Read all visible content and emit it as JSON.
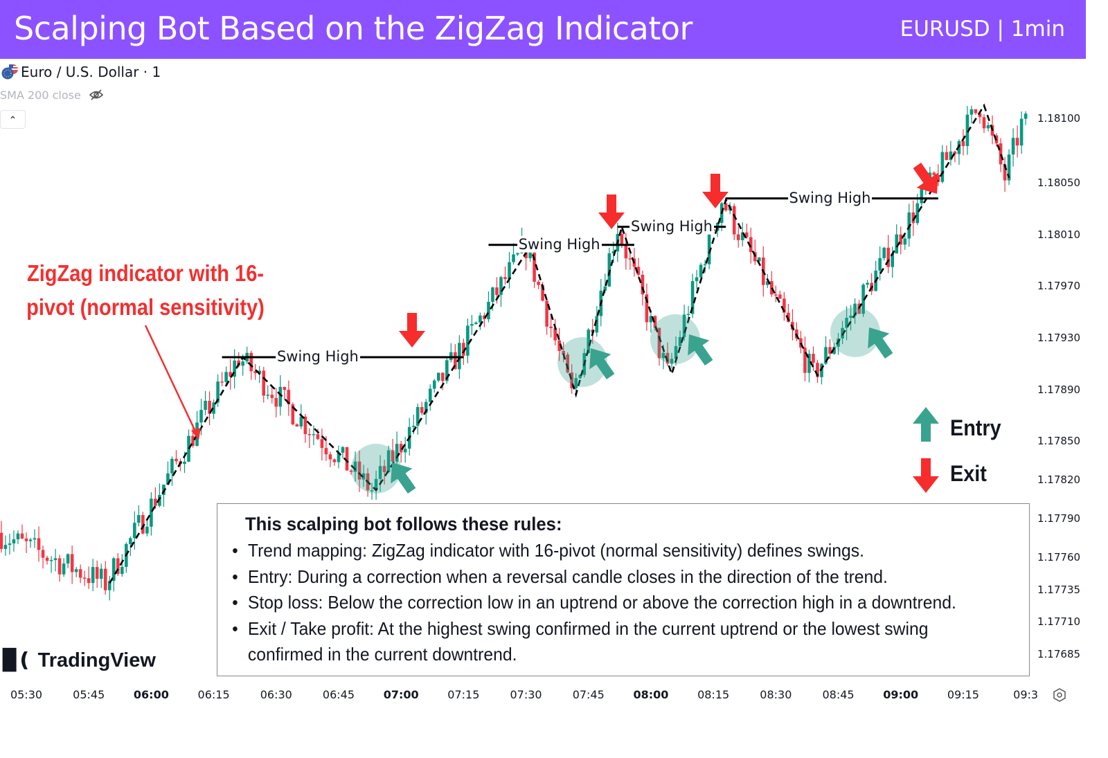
{
  "header": {
    "title": "Scalping Bot Based on the ZigZag Indicator",
    "symbol_label": "EURUSD | 1min",
    "background": "#8c52ff"
  },
  "legend": {
    "symbol": "Euro / U.S. Dollar · 1",
    "indicator": "SMA 200 close",
    "indicator_icon": "eye-off-icon",
    "collapse_icon": "chevron-up-icon"
  },
  "annotation": {
    "line1": "ZigZag indicator with 16-",
    "line2": "pivot (normal sensitivity)",
    "color": "#f23030"
  },
  "marker_legend": {
    "entry": "Entry",
    "exit": "Exit",
    "entry_color": "#3aa38f",
    "exit_color": "#f72c2c"
  },
  "rules": {
    "title": "This scalping bot follows these rules:",
    "items": [
      "Trend mapping: ZigZag indicator with 16-pivot (normal sensitivity) defines swings.",
      "Entry: During a correction when a reversal candle closes in the direction of the trend.",
      "Stop loss: Below the correction low in an uptrend or above the correction high in a downtrend.",
      "Exit / Take profit: At the highest swing confirmed in the current uptrend or the lowest swing confirmed in the current downtrend."
    ]
  },
  "branding": {
    "logo_text": "TradingView"
  },
  "chart_data": {
    "type": "candlestick",
    "title": "",
    "timeframe": "1min",
    "colors": {
      "up": "#089981",
      "down": "#f23645",
      "zigzag": "#000000"
    },
    "y_ticks": [
      "1.18100",
      "1.18050",
      "1.18010",
      "1.17970",
      "1.17930",
      "1.17890",
      "1.17850",
      "1.17820",
      "1.17790",
      "1.17760",
      "1.17735",
      "1.17710",
      "1.17685"
    ],
    "x_ticks": [
      {
        "label": "05:30",
        "bold": false
      },
      {
        "label": "05:45",
        "bold": false
      },
      {
        "label": "06:00",
        "bold": true
      },
      {
        "label": "06:15",
        "bold": false
      },
      {
        "label": "06:30",
        "bold": false
      },
      {
        "label": "06:45",
        "bold": false
      },
      {
        "label": "07:00",
        "bold": true
      },
      {
        "label": "07:15",
        "bold": false
      },
      {
        "label": "07:30",
        "bold": false
      },
      {
        "label": "07:45",
        "bold": false
      },
      {
        "label": "08:00",
        "bold": true
      },
      {
        "label": "08:15",
        "bold": false
      },
      {
        "label": "08:30",
        "bold": false
      },
      {
        "label": "08:45",
        "bold": false
      },
      {
        "label": "09:00",
        "bold": true
      },
      {
        "label": "09:15",
        "bold": false
      },
      {
        "label": "09:3",
        "bold": false
      }
    ],
    "ylim": [
      1.1766,
      1.18145
    ],
    "price_path": [
      {
        "time": "05:24",
        "price": 1.17779
      },
      {
        "time": "05:50",
        "price": 1.1774
      },
      {
        "time": "06:22",
        "price": 1.17915
      },
      {
        "time": "06:54",
        "price": 1.17812
      },
      {
        "time": "07:31",
        "price": 1.18001
      },
      {
        "time": "07:42",
        "price": 1.17886
      },
      {
        "time": "07:53",
        "price": 1.18016
      },
      {
        "time": "08:05",
        "price": 1.17902
      },
      {
        "time": "08:18",
        "price": 1.18037
      },
      {
        "time": "08:40",
        "price": 1.17901
      },
      {
        "time": "09:20",
        "price": 1.1811
      },
      {
        "time": "09:26",
        "price": 1.18054
      },
      {
        "time": "09:30",
        "price": 1.18095
      }
    ],
    "zigzag_pivots": [
      {
        "time": "05:50",
        "price": 1.1774
      },
      {
        "time": "06:22",
        "price": 1.17915
      },
      {
        "time": "06:54",
        "price": 1.17812
      },
      {
        "time": "07:31",
        "price": 1.18001
      },
      {
        "time": "07:42",
        "price": 1.17886
      },
      {
        "time": "07:53",
        "price": 1.18016
      },
      {
        "time": "08:05",
        "price": 1.17902
      },
      {
        "time": "08:18",
        "price": 1.18037
      },
      {
        "time": "08:40",
        "price": 1.17901
      },
      {
        "time": "09:20",
        "price": 1.1811
      },
      {
        "time": "09:26",
        "price": 1.18054
      }
    ],
    "swing_highs": [
      {
        "label": "Swing High",
        "price": 1.17915,
        "from": "06:17",
        "to": "07:15",
        "label_time": "06:40"
      },
      {
        "label": "Swing High",
        "price": 1.18002,
        "from": "07:21",
        "to": "07:56",
        "label_time": "07:38"
      },
      {
        "label": "Swing High",
        "price": 1.18016,
        "from": "07:52",
        "to": "08:18",
        "label_time": "08:05"
      },
      {
        "label": "Swing High",
        "price": 1.18038,
        "from": "08:18",
        "to": "09:09",
        "label_time": "08:43"
      }
    ],
    "exit_signals": [
      "07:02",
      "07:50",
      "08:15",
      "09:09"
    ],
    "entry_signals": [
      "06:55",
      "07:44",
      "08:06",
      "08:47"
    ]
  }
}
